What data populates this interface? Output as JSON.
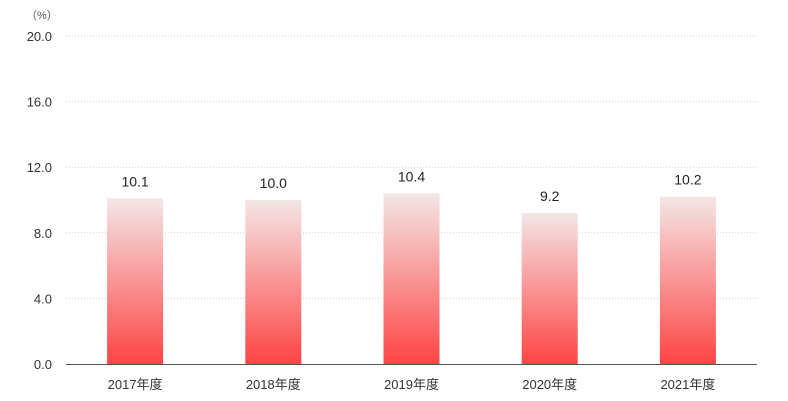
{
  "chart_data": {
    "type": "bar",
    "unit_label": "（%）",
    "categories": [
      "2017年度",
      "2018年度",
      "2019年度",
      "2020年度",
      "2021年度"
    ],
    "values": [
      10.1,
      10.0,
      10.4,
      9.2,
      10.2
    ],
    "data_labels": [
      "10.1",
      "10.0",
      "10.4",
      "9.2",
      "10.2"
    ],
    "ylim": [
      0,
      20
    ],
    "yticks": [
      0,
      4,
      8,
      12,
      16,
      20
    ],
    "ytick_labels": [
      "0.0",
      "4.0",
      "8.0",
      "12.0",
      "16.0",
      "20.0"
    ],
    "grid": true,
    "legend": "none",
    "bar_color_top": "#f4e6e6",
    "bar_color_bottom": "#ff4444",
    "gridline_color": "#d0d0d0",
    "axis_color": "#555555"
  }
}
